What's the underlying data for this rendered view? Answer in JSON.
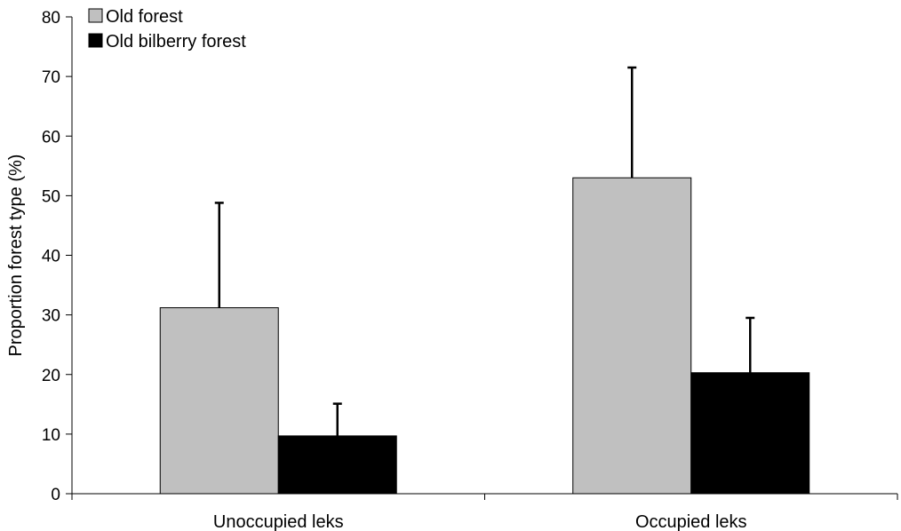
{
  "chart_data": {
    "type": "bar",
    "categories": [
      "Unoccupied leks",
      "Occupied leks"
    ],
    "series": [
      {
        "name": "Old forest",
        "values": [
          31.2,
          53.0
        ],
        "error_upper": [
          17.6,
          18.5
        ],
        "color": "#c0c0c0"
      },
      {
        "name": "Old bilberry forest",
        "values": [
          9.7,
          20.3
        ],
        "error_upper": [
          5.4,
          9.2
        ],
        "color": "#000000"
      }
    ],
    "ylabel": "Proportion forest type (%)",
    "xlabel": "",
    "ylim": [
      0,
      80
    ],
    "yticks": [
      0,
      10,
      20,
      30,
      40,
      50,
      60,
      70,
      80
    ],
    "grid": false,
    "legend_position": "top-left"
  }
}
